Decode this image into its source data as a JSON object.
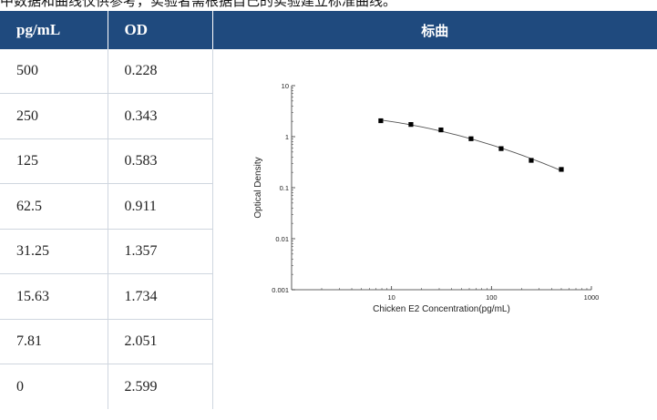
{
  "top_text": "中数据和曲线仅供参考，实验者需根据自己的实验建立标准曲线。",
  "table": {
    "headers": [
      "pg/mL",
      "OD"
    ],
    "chart_header": "标曲",
    "rows": [
      {
        "conc": "500",
        "od": "0.228"
      },
      {
        "conc": "250",
        "od": "0.343"
      },
      {
        "conc": "125",
        "od": "0.583"
      },
      {
        "conc": "62.5",
        "od": "0.911"
      },
      {
        "conc": "31.25",
        "od": "1.357"
      },
      {
        "conc": "15.63",
        "od": "1.734"
      },
      {
        "conc": "7.81",
        "od": "2.051"
      },
      {
        "conc": "0",
        "od": "2.599"
      }
    ]
  },
  "chart_data": {
    "type": "scatter",
    "xlabel": "Chicken E2 Concentration(pg/mL)",
    "ylabel": "Optical Density",
    "xscale": "log",
    "yscale": "log",
    "xlim": [
      1,
      1000
    ],
    "ylim": [
      0.001,
      10
    ],
    "x_ticks": [
      10,
      100,
      1000
    ],
    "x_tick_labels": [
      "10",
      "100",
      "1000"
    ],
    "y_ticks": [
      0.001,
      0.01,
      0.1,
      1,
      10
    ],
    "y_tick_labels": [
      "0.001",
      "0.01",
      "0.1",
      "1",
      "10"
    ],
    "grid": false,
    "series": [
      {
        "x": [
          7.81,
          15.63,
          31.25,
          62.5,
          125,
          250,
          500
        ],
        "y": [
          2.051,
          1.734,
          1.357,
          0.911,
          0.583,
          0.343,
          0.228
        ],
        "marker": "square",
        "line": "fitted curve",
        "color": "#000000"
      }
    ]
  }
}
